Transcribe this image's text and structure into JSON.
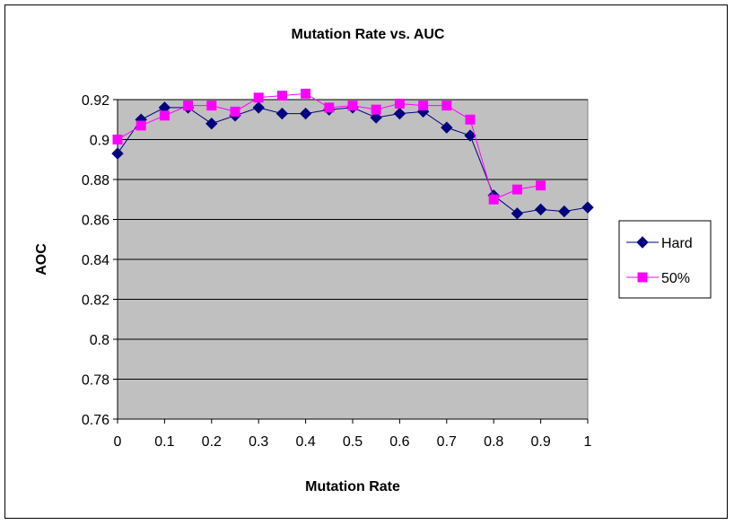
{
  "chart_data": {
    "type": "line",
    "title": "Mutation Rate vs. AUC",
    "xlabel": "Mutation Rate",
    "ylabel": "AOC",
    "xlim": [
      0,
      1
    ],
    "ylim": [
      0.76,
      0.92
    ],
    "x_ticks": [
      "0",
      "0.1",
      "0.2",
      "0.3",
      "0.4",
      "0.5",
      "0.6",
      "0.7",
      "0.8",
      "0.9",
      "1"
    ],
    "y_ticks": [
      "0.76",
      "0.78",
      "0.8",
      "0.82",
      "0.84",
      "0.86",
      "0.88",
      "0.9",
      "0.92"
    ],
    "grid": "horizontal",
    "legend_position": "right",
    "series": [
      {
        "name": "Hard",
        "color": "#000080",
        "marker": "diamond",
        "x": [
          0,
          0.05,
          0.1,
          0.15,
          0.2,
          0.25,
          0.3,
          0.35,
          0.4,
          0.45,
          0.5,
          0.55,
          0.6,
          0.65,
          0.7,
          0.75,
          0.8,
          0.85,
          0.9,
          0.95,
          1
        ],
        "y": [
          0.893,
          0.91,
          0.916,
          0.916,
          0.908,
          0.912,
          0.916,
          0.913,
          0.913,
          0.915,
          0.916,
          0.911,
          0.913,
          0.914,
          0.906,
          0.902,
          0.872,
          0.863,
          0.865,
          0.864,
          0.866
        ]
      },
      {
        "name": "50%",
        "color": "#ff00ff",
        "marker": "square",
        "x": [
          0,
          0.05,
          0.1,
          0.15,
          0.2,
          0.25,
          0.3,
          0.35,
          0.4,
          0.45,
          0.5,
          0.55,
          0.6,
          0.65,
          0.7,
          0.75,
          0.8,
          0.85,
          0.9
        ],
        "y": [
          0.9,
          0.907,
          0.912,
          0.917,
          0.917,
          0.914,
          0.921,
          0.922,
          0.923,
          0.916,
          0.917,
          0.915,
          0.918,
          0.917,
          0.917,
          0.91,
          0.87,
          0.875,
          0.877
        ]
      }
    ]
  }
}
